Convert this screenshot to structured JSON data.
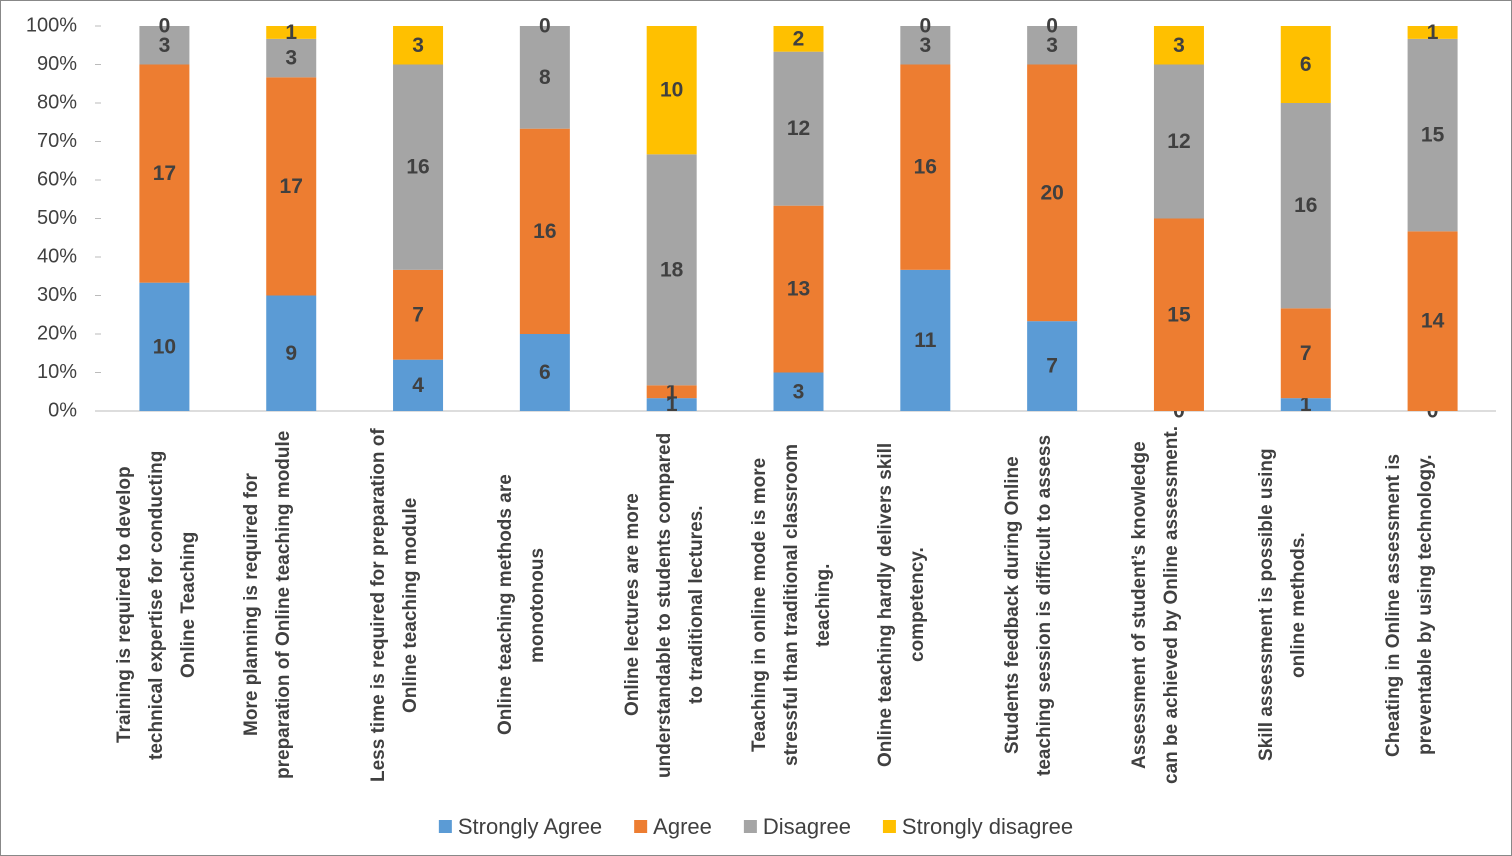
{
  "chart_data": {
    "type": "bar",
    "stacking": "percent",
    "grid": false,
    "legend": "bottom",
    "categories": [
      "Training is required to develop technical expertise for conducting Online Teaching",
      "More planning is required for preparation of Online teaching module",
      "Less time is required for preparation of Online teaching module",
      "Online teaching methods are monotonous",
      "Online lectures are more understandable to students compared to traditional lectures.",
      "Teaching in online mode is more stressful than traditional classroom teaching.",
      "Online teaching hardly delivers skill competency.",
      "Students feedback during Online teaching session is difficult to assess",
      "Assessment of student’s knowledge can be achieved by Online assessment.",
      "Skill assessment is possible using online methods.",
      "Cheating in Online assessment is preventable by using technology."
    ],
    "series": [
      {
        "name": "Strongly Agree",
        "color": "#5b9bd5",
        "values": [
          10,
          9,
          4,
          6,
          1,
          3,
          11,
          7,
          0,
          1,
          0
        ]
      },
      {
        "name": "Agree",
        "color": "#ed7d31",
        "values": [
          17,
          17,
          7,
          16,
          1,
          13,
          16,
          20,
          15,
          7,
          14
        ]
      },
      {
        "name": "Disagree",
        "color": "#a5a5a5",
        "values": [
          3,
          3,
          16,
          8,
          18,
          12,
          3,
          3,
          12,
          16,
          15
        ]
      },
      {
        "name": "Strongly disagree",
        "color": "#ffc000",
        "values": [
          0,
          1,
          3,
          0,
          10,
          2,
          0,
          0,
          3,
          6,
          1
        ]
      }
    ],
    "ylim": [
      0,
      100
    ],
    "yticks": [
      {
        "value": 0,
        "label": "0%"
      },
      {
        "value": 10,
        "label": "10%"
      },
      {
        "value": 20,
        "label": "20%"
      },
      {
        "value": 30,
        "label": "30%"
      },
      {
        "value": 40,
        "label": "40%"
      },
      {
        "value": 50,
        "label": "50%"
      },
      {
        "value": 60,
        "label": "60%"
      },
      {
        "value": 70,
        "label": "70%"
      },
      {
        "value": 80,
        "label": "80%"
      },
      {
        "value": 90,
        "label": "90%"
      },
      {
        "value": 100,
        "label": "100%"
      }
    ]
  }
}
